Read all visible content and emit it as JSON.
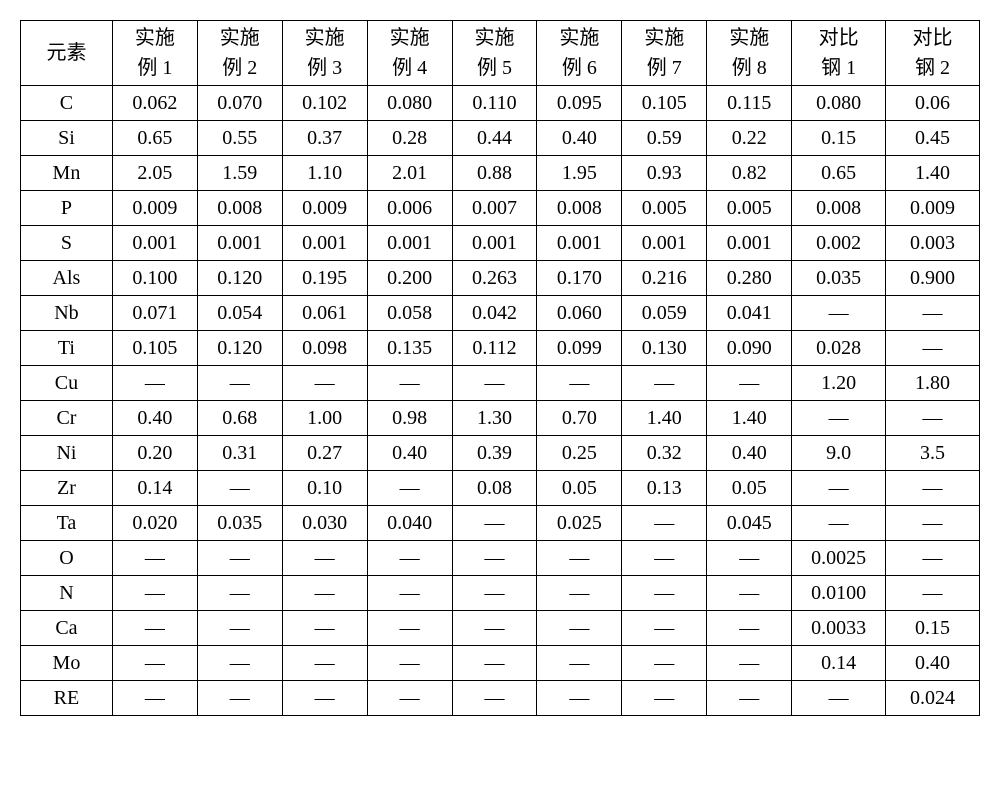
{
  "table": {
    "background_color": "#ffffff",
    "border_color": "#000000",
    "text_color": "#000000",
    "font_size_pt": 15,
    "columns": [
      {
        "key": "elem",
        "label_lines": [
          "元素"
        ]
      },
      {
        "key": "ex1",
        "label_lines": [
          "实施",
          "例 1"
        ]
      },
      {
        "key": "ex2",
        "label_lines": [
          "实施",
          "例 2"
        ]
      },
      {
        "key": "ex3",
        "label_lines": [
          "实施",
          "例 3"
        ]
      },
      {
        "key": "ex4",
        "label_lines": [
          "实施",
          "例 4"
        ]
      },
      {
        "key": "ex5",
        "label_lines": [
          "实施",
          "例 5"
        ]
      },
      {
        "key": "ex6",
        "label_lines": [
          "实施",
          "例 6"
        ]
      },
      {
        "key": "ex7",
        "label_lines": [
          "实施",
          "例 7"
        ]
      },
      {
        "key": "ex8",
        "label_lines": [
          "实施",
          "例 8"
        ]
      },
      {
        "key": "cmp1",
        "label_lines": [
          "对比",
          "钢 1"
        ]
      },
      {
        "key": "cmp2",
        "label_lines": [
          "对比",
          "钢 2"
        ]
      }
    ],
    "rows": [
      {
        "elem": "C",
        "ex1": "0.062",
        "ex2": "0.070",
        "ex3": "0.102",
        "ex4": "0.080",
        "ex5": "0.110",
        "ex6": "0.095",
        "ex7": "0.105",
        "ex8": "0.115",
        "cmp1": "0.080",
        "cmp2": "0.06"
      },
      {
        "elem": "Si",
        "ex1": "0.65",
        "ex2": "0.55",
        "ex3": "0.37",
        "ex4": "0.28",
        "ex5": "0.44",
        "ex6": "0.40",
        "ex7": "0.59",
        "ex8": "0.22",
        "cmp1": "0.15",
        "cmp2": "0.45"
      },
      {
        "elem": "Mn",
        "ex1": "2.05",
        "ex2": "1.59",
        "ex3": "1.10",
        "ex4": "2.01",
        "ex5": "0.88",
        "ex6": "1.95",
        "ex7": "0.93",
        "ex8": "0.82",
        "cmp1": "0.65",
        "cmp2": "1.40"
      },
      {
        "elem": "P",
        "ex1": "0.009",
        "ex2": "0.008",
        "ex3": "0.009",
        "ex4": "0.006",
        "ex5": "0.007",
        "ex6": "0.008",
        "ex7": "0.005",
        "ex8": "0.005",
        "cmp1": "0.008",
        "cmp2": "0.009"
      },
      {
        "elem": "S",
        "ex1": "0.001",
        "ex2": "0.001",
        "ex3": "0.001",
        "ex4": "0.001",
        "ex5": "0.001",
        "ex6": "0.001",
        "ex7": "0.001",
        "ex8": "0.001",
        "cmp1": "0.002",
        "cmp2": "0.003"
      },
      {
        "elem": "Als",
        "ex1": "0.100",
        "ex2": "0.120",
        "ex3": "0.195",
        "ex4": "0.200",
        "ex5": "0.263",
        "ex6": "0.170",
        "ex7": "0.216",
        "ex8": "0.280",
        "cmp1": "0.035",
        "cmp2": "0.900"
      },
      {
        "elem": "Nb",
        "ex1": "0.071",
        "ex2": "0.054",
        "ex3": "0.061",
        "ex4": "0.058",
        "ex5": "0.042",
        "ex6": "0.060",
        "ex7": "0.059",
        "ex8": "0.041",
        "cmp1": "—",
        "cmp2": "—"
      },
      {
        "elem": "Ti",
        "ex1": "0.105",
        "ex2": "0.120",
        "ex3": "0.098",
        "ex4": "0.135",
        "ex5": "0.112",
        "ex6": "0.099",
        "ex7": "0.130",
        "ex8": "0.090",
        "cmp1": "0.028",
        "cmp2": "—"
      },
      {
        "elem": "Cu",
        "ex1": "—",
        "ex2": "—",
        "ex3": "—",
        "ex4": "—",
        "ex5": "—",
        "ex6": "—",
        "ex7": "—",
        "ex8": "—",
        "cmp1": "1.20",
        "cmp2": "1.80"
      },
      {
        "elem": "Cr",
        "ex1": "0.40",
        "ex2": "0.68",
        "ex3": "1.00",
        "ex4": "0.98",
        "ex5": "1.30",
        "ex6": "0.70",
        "ex7": "1.40",
        "ex8": "1.40",
        "cmp1": "—",
        "cmp2": "—"
      },
      {
        "elem": "Ni",
        "ex1": "0.20",
        "ex2": "0.31",
        "ex3": "0.27",
        "ex4": "0.40",
        "ex5": "0.39",
        "ex6": "0.25",
        "ex7": "0.32",
        "ex8": "0.40",
        "cmp1": "9.0",
        "cmp2": "3.5"
      },
      {
        "elem": "Zr",
        "ex1": "0.14",
        "ex2": "—",
        "ex3": "0.10",
        "ex4": "—",
        "ex5": "0.08",
        "ex6": "0.05",
        "ex7": "0.13",
        "ex8": "0.05",
        "cmp1": "—",
        "cmp2": "—"
      },
      {
        "elem": "Ta",
        "ex1": "0.020",
        "ex2": "0.035",
        "ex3": "0.030",
        "ex4": "0.040",
        "ex5": "—",
        "ex6": "0.025",
        "ex7": "—",
        "ex8": "0.045",
        "cmp1": "—",
        "cmp2": "—"
      },
      {
        "elem": "O",
        "ex1": "—",
        "ex2": "—",
        "ex3": "—",
        "ex4": "—",
        "ex5": "—",
        "ex6": "—",
        "ex7": "—",
        "ex8": "—",
        "cmp1": "0.0025",
        "cmp2": "—"
      },
      {
        "elem": "N",
        "ex1": "—",
        "ex2": "—",
        "ex3": "—",
        "ex4": "—",
        "ex5": "—",
        "ex6": "—",
        "ex7": "—",
        "ex8": "—",
        "cmp1": "0.0100",
        "cmp2": "—"
      },
      {
        "elem": "Ca",
        "ex1": "—",
        "ex2": "—",
        "ex3": "—",
        "ex4": "—",
        "ex5": "—",
        "ex6": "—",
        "ex7": "—",
        "ex8": "—",
        "cmp1": "0.0033",
        "cmp2": "0.15"
      },
      {
        "elem": "Mo",
        "ex1": "—",
        "ex2": "—",
        "ex3": "—",
        "ex4": "—",
        "ex5": "—",
        "ex6": "—",
        "ex7": "—",
        "ex8": "—",
        "cmp1": "0.14",
        "cmp2": "0.40"
      },
      {
        "elem": "RE",
        "ex1": "—",
        "ex2": "—",
        "ex3": "—",
        "ex4": "—",
        "ex5": "—",
        "ex6": "—",
        "ex7": "—",
        "ex8": "—",
        "cmp1": "—",
        "cmp2": "0.024"
      }
    ]
  }
}
